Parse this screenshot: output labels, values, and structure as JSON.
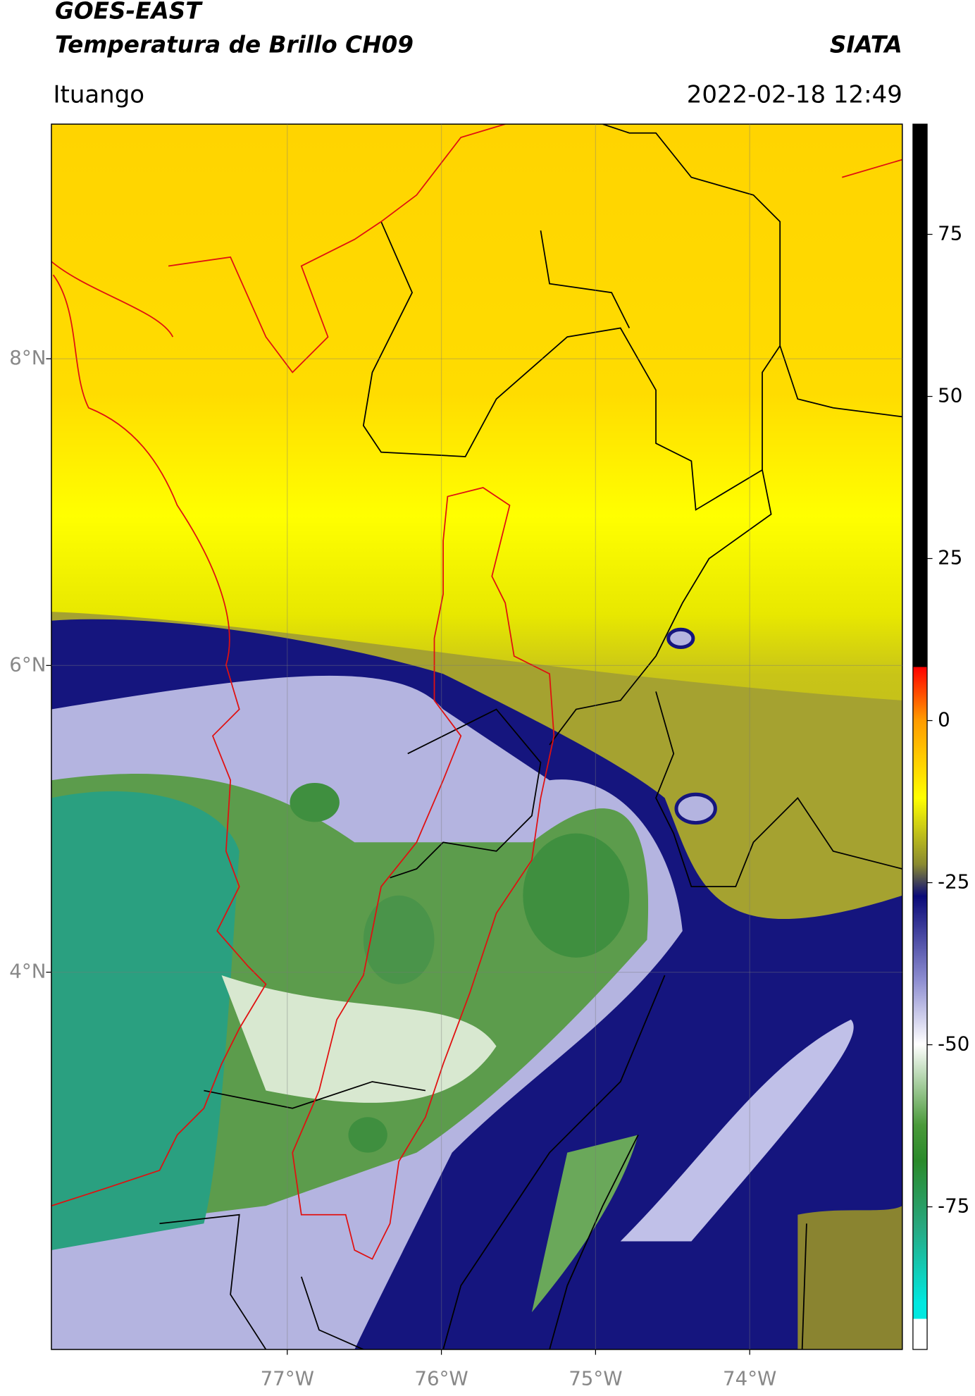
{
  "header": {
    "title_line1": "GOES-EAST",
    "title_line2": "Temperatura de Brillo CH09",
    "org": "SIATA",
    "location": "Ituango",
    "datetime": "2022-02-18 12:49"
  },
  "map": {
    "lonlim": [
      -78.53,
      -73.01
    ],
    "latlim": [
      1.54,
      9.53
    ],
    "lon_ticks": [
      {
        "value": -77,
        "label": "77°W"
      },
      {
        "value": -76,
        "label": "76°W"
      },
      {
        "value": -75,
        "label": "75°W"
      },
      {
        "value": -74,
        "label": "74°W"
      }
    ],
    "lat_ticks": [
      {
        "value": 8,
        "label": "8°N"
      },
      {
        "value": 6,
        "label": "6°N"
      },
      {
        "value": 4,
        "label": "4°N"
      }
    ]
  },
  "colorbar": {
    "lim": [
      -97,
      92
    ],
    "ticks": [
      75,
      50,
      25,
      0,
      -25,
      -50,
      -75
    ]
  }
}
